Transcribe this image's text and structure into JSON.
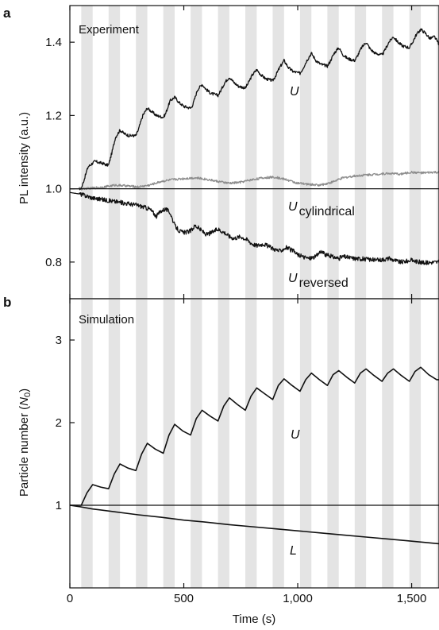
{
  "chart_data": [
    {
      "panel": "a",
      "title": "Experiment",
      "type": "line",
      "xlabel": "",
      "ylabel": "PL intensity (a.u.)",
      "xlim": [
        0,
        1620
      ],
      "ylim": [
        0.7,
        1.5
      ],
      "yticks": [
        0.8,
        1.0,
        1.2,
        1.4
      ],
      "ytick_labels": [
        "0.8",
        "1.0",
        "1.2",
        "1.4"
      ],
      "xticks": [
        0,
        500,
        1000,
        1500
      ],
      "reference_line_y": 1.0,
      "shaded_intervals": [
        [
          50,
          100
        ],
        [
          170,
          220
        ],
        [
          290,
          340
        ],
        [
          410,
          460
        ],
        [
          530,
          580
        ],
        [
          650,
          700
        ],
        [
          770,
          820
        ],
        [
          890,
          940
        ],
        [
          1010,
          1060
        ],
        [
          1130,
          1180
        ],
        [
          1250,
          1300
        ],
        [
          1370,
          1420
        ],
        [
          1490,
          1540
        ],
        [
          1610,
          1620
        ]
      ],
      "shade_color": "#e4e4e4",
      "series": [
        {
          "name": "U",
          "label_main": "U",
          "label_sub": "",
          "color": "#111111",
          "x": [
            0,
            50,
            65,
            80,
            100,
            110,
            125,
            140,
            150,
            160,
            170,
            185,
            200,
            220,
            240,
            260,
            290,
            300,
            320,
            340,
            360,
            380,
            410,
            420,
            440,
            460,
            480,
            500,
            530,
            540,
            560,
            580,
            600,
            620,
            650,
            660,
            680,
            700,
            720,
            740,
            770,
            780,
            800,
            820,
            840,
            860,
            890,
            900,
            920,
            940,
            960,
            980,
            1010,
            1020,
            1040,
            1060,
            1080,
            1100,
            1130,
            1140,
            1160,
            1180,
            1200,
            1220,
            1250,
            1260,
            1280,
            1300,
            1320,
            1340,
            1370,
            1380,
            1400,
            1420,
            1440,
            1460,
            1490,
            1500,
            1520,
            1540,
            1560,
            1580,
            1600,
            1620
          ],
          "y": [
            1.0,
            1.0,
            1.03,
            1.06,
            1.07,
            1.075,
            1.072,
            1.07,
            1.068,
            1.065,
            1.065,
            1.1,
            1.14,
            1.16,
            1.15,
            1.145,
            1.145,
            1.16,
            1.2,
            1.22,
            1.21,
            1.2,
            1.195,
            1.205,
            1.24,
            1.25,
            1.235,
            1.225,
            1.22,
            1.23,
            1.27,
            1.285,
            1.27,
            1.26,
            1.255,
            1.265,
            1.29,
            1.305,
            1.29,
            1.28,
            1.275,
            1.285,
            1.31,
            1.325,
            1.31,
            1.3,
            1.295,
            1.305,
            1.33,
            1.35,
            1.33,
            1.32,
            1.315,
            1.325,
            1.35,
            1.37,
            1.35,
            1.34,
            1.335,
            1.345,
            1.37,
            1.385,
            1.365,
            1.355,
            1.35,
            1.36,
            1.385,
            1.4,
            1.38,
            1.37,
            1.365,
            1.375,
            1.4,
            1.415,
            1.4,
            1.39,
            1.385,
            1.395,
            1.42,
            1.435,
            1.425,
            1.41,
            1.415,
            1.395
          ]
        },
        {
          "name": "U cylindrical",
          "label_main": "U",
          "label_sub": "cylindrical",
          "color": "#8c8c8c",
          "x": [
            0,
            50,
            100,
            150,
            200,
            250,
            300,
            350,
            400,
            450,
            500,
            550,
            600,
            650,
            700,
            750,
            800,
            850,
            900,
            950,
            1000,
            1050,
            1100,
            1150,
            1200,
            1250,
            1300,
            1350,
            1400,
            1450,
            1500,
            1550,
            1600,
            1620
          ],
          "y": [
            1.0,
            1.0,
            1.002,
            1.005,
            1.01,
            1.008,
            1.005,
            1.01,
            1.02,
            1.025,
            1.028,
            1.03,
            1.026,
            1.02,
            1.015,
            1.018,
            1.025,
            1.03,
            1.032,
            1.025,
            1.015,
            1.012,
            1.01,
            1.018,
            1.03,
            1.035,
            1.038,
            1.04,
            1.042,
            1.04,
            1.045,
            1.043,
            1.045,
            1.044
          ]
        },
        {
          "name": "U reversed",
          "label_main": "U",
          "label_sub": "reversed",
          "color": "#111111",
          "x": [
            0,
            50,
            100,
            150,
            200,
            250,
            300,
            350,
            380,
            400,
            420,
            440,
            460,
            480,
            500,
            530,
            550,
            580,
            600,
            620,
            650,
            680,
            700,
            720,
            750,
            780,
            800,
            820,
            850,
            880,
            900,
            920,
            950,
            980,
            1000,
            1020,
            1050,
            1080,
            1100,
            1120,
            1150,
            1180,
            1200,
            1250,
            1300,
            1350,
            1400,
            1450,
            1500,
            1550,
            1600,
            1620
          ],
          "y": [
            0.99,
            0.985,
            0.975,
            0.97,
            0.965,
            0.96,
            0.955,
            0.945,
            0.925,
            0.94,
            0.945,
            0.935,
            0.9,
            0.885,
            0.88,
            0.885,
            0.9,
            0.885,
            0.875,
            0.88,
            0.89,
            0.88,
            0.87,
            0.865,
            0.87,
            0.86,
            0.85,
            0.845,
            0.85,
            0.84,
            0.835,
            0.83,
            0.84,
            0.83,
            0.82,
            0.815,
            0.81,
            0.815,
            0.83,
            0.82,
            0.815,
            0.81,
            0.815,
            0.81,
            0.808,
            0.805,
            0.81,
            0.8,
            0.805,
            0.798,
            0.8,
            0.8
          ]
        }
      ]
    },
    {
      "panel": "b",
      "title": "Simulation",
      "type": "line",
      "xlabel": "Time (s)",
      "ylabel_main": "Particle number (",
      "ylabel_var": "N",
      "ylabel_sub": "0",
      "ylabel_close": ")",
      "xlim": [
        0,
        1620
      ],
      "ylim": [
        0,
        3.5
      ],
      "yticks": [
        1,
        2,
        3
      ],
      "ytick_labels": [
        "1",
        "2",
        "3"
      ],
      "xticks": [
        0,
        500,
        1000,
        1500
      ],
      "xtick_labels": [
        "0",
        "500",
        "1,000",
        "1,500"
      ],
      "reference_line_y": 1.0,
      "shaded_intervals": [
        [
          50,
          100
        ],
        [
          170,
          220
        ],
        [
          290,
          340
        ],
        [
          410,
          460
        ],
        [
          530,
          580
        ],
        [
          650,
          700
        ],
        [
          770,
          820
        ],
        [
          890,
          940
        ],
        [
          1010,
          1060
        ],
        [
          1130,
          1180
        ],
        [
          1250,
          1300
        ],
        [
          1370,
          1420
        ],
        [
          1490,
          1540
        ],
        [
          1610,
          1620
        ]
      ],
      "shade_color": "#e4e4e4",
      "series": [
        {
          "name": "U",
          "label_main": "U",
          "label_sub": "",
          "color": "#111111",
          "x": [
            0,
            50,
            75,
            100,
            135,
            170,
            195,
            220,
            255,
            290,
            315,
            340,
            375,
            410,
            435,
            460,
            495,
            530,
            555,
            580,
            615,
            650,
            675,
            700,
            735,
            770,
            795,
            820,
            855,
            890,
            915,
            940,
            975,
            1010,
            1035,
            1060,
            1095,
            1130,
            1155,
            1180,
            1215,
            1250,
            1275,
            1300,
            1335,
            1370,
            1395,
            1420,
            1455,
            1490,
            1515,
            1540,
            1575,
            1610,
            1620
          ],
          "y": [
            1.0,
            1.0,
            1.15,
            1.25,
            1.22,
            1.2,
            1.38,
            1.5,
            1.45,
            1.42,
            1.62,
            1.75,
            1.68,
            1.63,
            1.85,
            1.98,
            1.9,
            1.85,
            2.05,
            2.15,
            2.08,
            2.02,
            2.2,
            2.3,
            2.22,
            2.15,
            2.32,
            2.42,
            2.35,
            2.28,
            2.45,
            2.53,
            2.45,
            2.38,
            2.52,
            2.6,
            2.52,
            2.45,
            2.58,
            2.63,
            2.55,
            2.48,
            2.6,
            2.65,
            2.57,
            2.5,
            2.6,
            2.65,
            2.57,
            2.5,
            2.62,
            2.67,
            2.58,
            2.52,
            2.52
          ]
        },
        {
          "name": "L",
          "label_main": "L",
          "label_sub": "",
          "color": "#111111",
          "x": [
            0,
            50,
            100,
            200,
            300,
            400,
            500,
            600,
            700,
            800,
            900,
            1000,
            1100,
            1200,
            1300,
            1400,
            1500,
            1620
          ],
          "y": [
            1.0,
            0.98,
            0.955,
            0.92,
            0.885,
            0.855,
            0.82,
            0.795,
            0.765,
            0.74,
            0.715,
            0.69,
            0.665,
            0.64,
            0.615,
            0.59,
            0.565,
            0.535
          ]
        }
      ]
    }
  ]
}
